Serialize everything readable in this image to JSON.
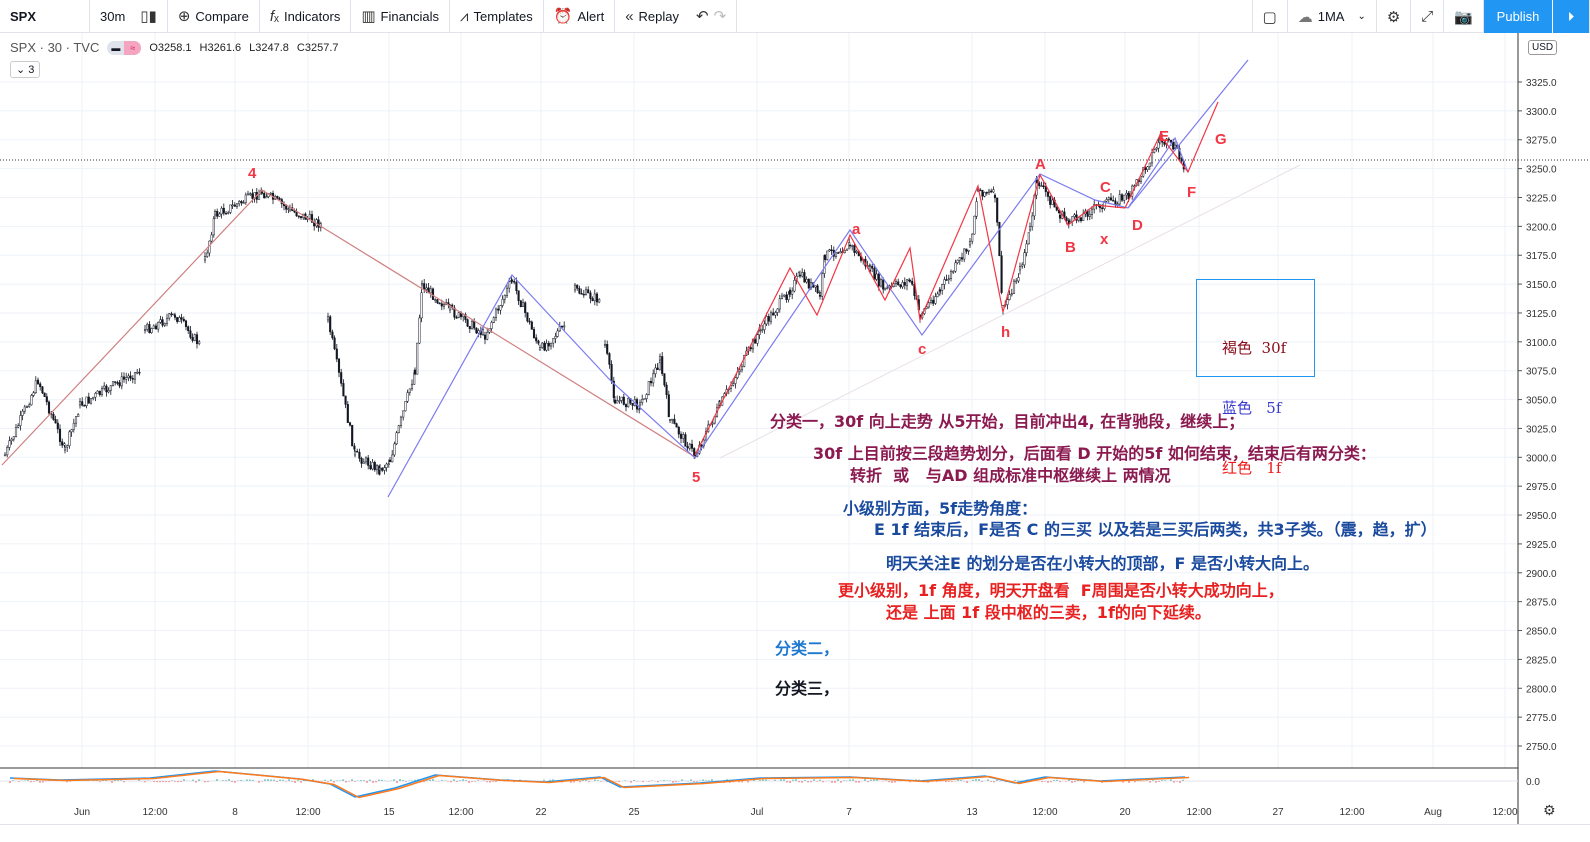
{
  "toolbar": {
    "symbol": "SPX",
    "interval": "30m",
    "compare": "Compare",
    "indicators": "Indicators",
    "financials": "Financials",
    "templates": "Templates",
    "alert": "Alert",
    "replay": "Replay",
    "ma": "1MA",
    "publish": "Publish"
  },
  "legend": {
    "symbol": "SPX · 30 · TVC",
    "open": "O3258.1",
    "high": "H3261.6",
    "low": "L3247.8",
    "close": "C3257.7",
    "collapse": "3"
  },
  "currency": "USD",
  "price_axis": [
    "3325.0",
    "3300.0",
    "3275.0",
    "3250.0",
    "3225.0",
    "3200.0",
    "3175.0",
    "3150.0",
    "3125.0",
    "3100.0",
    "3075.0",
    "3050.0",
    "3025.0",
    "3000.0",
    "2975.0",
    "2950.0",
    "2925.0",
    "2900.0",
    "2875.0",
    "2850.0",
    "2825.0",
    "2800.0",
    "2775.0",
    "2750.0"
  ],
  "macd_axis": "0.0",
  "time_axis": [
    "Jun",
    "12:00",
    "8",
    "12:00",
    "15",
    "12:00",
    "22",
    "25",
    "Jul",
    "7",
    "13",
    "12:00",
    "20",
    "12:00",
    "27",
    "12:00",
    "Aug",
    "12:00"
  ],
  "wave_labels": [
    "4",
    "5",
    "a",
    "c",
    "h",
    "A",
    "B",
    "x",
    "C",
    "D",
    "E",
    "F",
    "G"
  ],
  "color_legend": [
    {
      "text": "褐色  30f",
      "color": "#8b0a1a"
    },
    {
      "text": "蓝色   5f",
      "color": "#3a3ad0"
    },
    {
      "text": "红色   1f",
      "color": "#f01818"
    }
  ],
  "notes": [
    {
      "text": "分类一，30f 向上走势 从5开始，目前冲出4, 在背驰段，继续上；",
      "color": "#8b1a50"
    },
    {
      "text": "30f 上目前按三段趋势划分，后面看 D 开始的5f 如何结束，结束后有两分类：",
      "color": "#8b1a50"
    },
    {
      "text": "转折  或   与AD 组成标准中枢继续上 两情况",
      "color": "#8b1a50"
    },
    {
      "text": "小级别方面，5f走势角度：",
      "color": "#1a4a9e"
    },
    {
      "text": "E 1f 结束后，F是否 C 的三买 以及若是三买后两类，共3子类。（震，趋，扩）",
      "color": "#1a4a9e"
    },
    {
      "text": "明天关注E 的划分是否在小转大的顶部，F 是否小转大向上。",
      "color": "#1a4a9e"
    },
    {
      "text": "更小级别，1f 角度，明天开盘看  F周围是否小转大成功向上，",
      "color": "#e82020"
    },
    {
      "text": "还是 上面 1f 段中枢的三卖，1f的向下延续。",
      "color": "#e82020"
    },
    {
      "text": "分类二，",
      "color": "#1e78d0"
    },
    {
      "text": "分类三，",
      "color": "#131722"
    }
  ],
  "colors": {
    "accent": "#2196f3",
    "wave_30f": "#d08080",
    "wave_5f": "#7b7bf0",
    "wave_1f": "#f23645",
    "candle": "#131722"
  }
}
